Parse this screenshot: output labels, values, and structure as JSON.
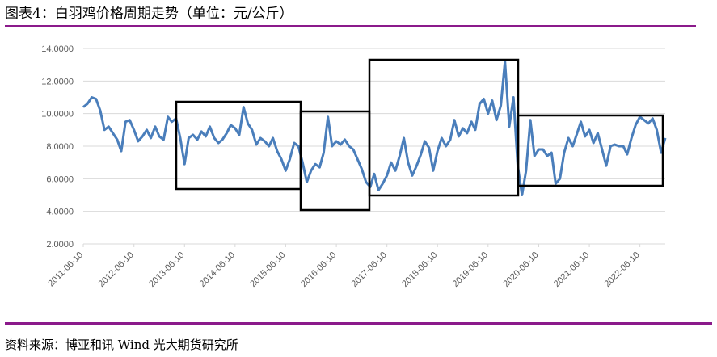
{
  "chart_data": {
    "type": "line",
    "title": "图表4：白羽鸡价格周期走势（单位：元/公斤）",
    "source": "资料来源：博亚和讯 Wind 光大期货研究所",
    "color": "#4a7ebb",
    "grid": true,
    "x": [
      "2011-06-10",
      "2011-07-10",
      "2011-08-10",
      "2011-09-10",
      "2011-10-10",
      "2011-11-10",
      "2011-12-10",
      "2012-01-10",
      "2012-02-10",
      "2012-03-10",
      "2012-04-10",
      "2012-05-10",
      "2012-06-10",
      "2012-07-10",
      "2012-08-10",
      "2012-09-10",
      "2012-10-10",
      "2012-11-10",
      "2012-12-10",
      "2013-01-10",
      "2013-02-10",
      "2013-03-10",
      "2013-04-10",
      "2013-05-10",
      "2013-06-10",
      "2013-07-10",
      "2013-08-10",
      "2013-09-10",
      "2013-10-10",
      "2013-11-10",
      "2013-12-10",
      "2014-01-10",
      "2014-02-10",
      "2014-03-10",
      "2014-04-10",
      "2014-05-10",
      "2014-06-10",
      "2014-07-10",
      "2014-08-10",
      "2014-09-10",
      "2014-10-10",
      "2014-11-10",
      "2014-12-10",
      "2015-01-10",
      "2015-02-10",
      "2015-03-10",
      "2015-04-10",
      "2015-05-10",
      "2015-06-10",
      "2015-07-10",
      "2015-08-10",
      "2015-09-10",
      "2015-10-10",
      "2015-11-10",
      "2015-12-10",
      "2016-01-10",
      "2016-02-10",
      "2016-03-10",
      "2016-04-10",
      "2016-05-10",
      "2016-06-10",
      "2016-07-10",
      "2016-08-10",
      "2016-09-10",
      "2016-10-10",
      "2016-11-10",
      "2016-12-10",
      "2017-01-10",
      "2017-02-10",
      "2017-03-10",
      "2017-04-10",
      "2017-05-10",
      "2017-06-10",
      "2017-07-10",
      "2017-08-10",
      "2017-09-10",
      "2017-10-10",
      "2017-11-10",
      "2017-12-10",
      "2018-01-10",
      "2018-02-10",
      "2018-03-10",
      "2018-04-10",
      "2018-05-10",
      "2018-06-10",
      "2018-07-10",
      "2018-08-10",
      "2018-09-10",
      "2018-10-10",
      "2018-11-10",
      "2018-12-10",
      "2019-01-10",
      "2019-02-10",
      "2019-03-10",
      "2019-04-10",
      "2019-05-10",
      "2019-06-10",
      "2019-07-10",
      "2019-08-10",
      "2019-09-10",
      "2019-10-10",
      "2019-11-10",
      "2019-12-10",
      "2020-01-10",
      "2020-02-10",
      "2020-03-10",
      "2020-04-10",
      "2020-05-10",
      "2020-06-10",
      "2020-07-10",
      "2020-08-10",
      "2020-09-10",
      "2020-10-10",
      "2020-11-10",
      "2020-12-10",
      "2021-01-10",
      "2021-02-10",
      "2021-03-10",
      "2021-04-10",
      "2021-05-10",
      "2021-06-10",
      "2021-07-10",
      "2021-08-10",
      "2021-09-10",
      "2021-10-10",
      "2021-11-10",
      "2021-12-10",
      "2022-01-10",
      "2022-02-10",
      "2022-03-10",
      "2022-04-10",
      "2022-05-10",
      "2022-06-10",
      "2022-07-10",
      "2022-08-10",
      "2022-09-10",
      "2022-10-10",
      "2022-11-10",
      "2022-12-10"
    ],
    "values": [
      10.4,
      10.6,
      11.0,
      10.9,
      10.2,
      9.0,
      9.2,
      8.8,
      8.4,
      7.7,
      9.5,
      9.6,
      9.0,
      8.3,
      8.6,
      9.0,
      8.5,
      9.2,
      8.6,
      8.4,
      9.8,
      9.5,
      9.7,
      8.5,
      6.9,
      8.5,
      8.7,
      8.4,
      8.9,
      8.6,
      9.2,
      8.5,
      8.2,
      8.4,
      8.8,
      9.3,
      9.1,
      8.7,
      10.4,
      9.4,
      9.0,
      8.1,
      8.5,
      8.3,
      8.0,
      8.5,
      7.7,
      7.2,
      6.5,
      7.2,
      8.2,
      8.0,
      7.0,
      5.8,
      6.5,
      6.9,
      6.7,
      7.6,
      9.8,
      8.0,
      8.3,
      8.1,
      8.4,
      8.0,
      7.8,
      7.2,
      6.6,
      5.8,
      5.5,
      6.3,
      5.3,
      5.7,
      6.2,
      7.0,
      6.5,
      7.4,
      8.5,
      7.0,
      6.2,
      6.8,
      7.5,
      8.3,
      7.9,
      6.5,
      7.7,
      8.5,
      8.0,
      8.4,
      9.6,
      8.6,
      9.1,
      8.8,
      9.5,
      9.0,
      10.6,
      10.9,
      10.0,
      10.8,
      9.6,
      10.5,
      13.2,
      9.2,
      11.0,
      6.8,
      5.0,
      6.5,
      9.6,
      7.4,
      7.8,
      7.8,
      7.4,
      7.6,
      5.7,
      6.0,
      7.6,
      8.5,
      8.0,
      8.7,
      9.5,
      8.6,
      9.0,
      8.2,
      8.8,
      7.8,
      6.8,
      8.0,
      8.1,
      8.0,
      8.0,
      7.5,
      8.5,
      9.3,
      9.8,
      9.6,
      9.4,
      9.7,
      9.0,
      7.6,
      8.5
    ],
    "xlim": [
      "2011-06-10",
      "2022-12-10"
    ],
    "xticks": [
      "2011-06-10",
      "2012-06-10",
      "2013-06-10",
      "2014-06-10",
      "2015-06-10",
      "2016-06-10",
      "2017-06-10",
      "2018-06-10",
      "2019-06-10",
      "2020-06-10",
      "2021-06-10",
      "2022-06-10"
    ],
    "ylim": [
      2,
      14
    ],
    "yticks": [
      {
        "value": 2,
        "label": "2.0000"
      },
      {
        "value": 4,
        "label": "4.0000"
      },
      {
        "value": 6,
        "label": "6.0000"
      },
      {
        "value": 8,
        "label": "8.0000"
      },
      {
        "value": 10,
        "label": "10.0000"
      },
      {
        "value": 12,
        "label": "12.0000"
      },
      {
        "value": 14,
        "label": "14.0000"
      }
    ]
  }
}
